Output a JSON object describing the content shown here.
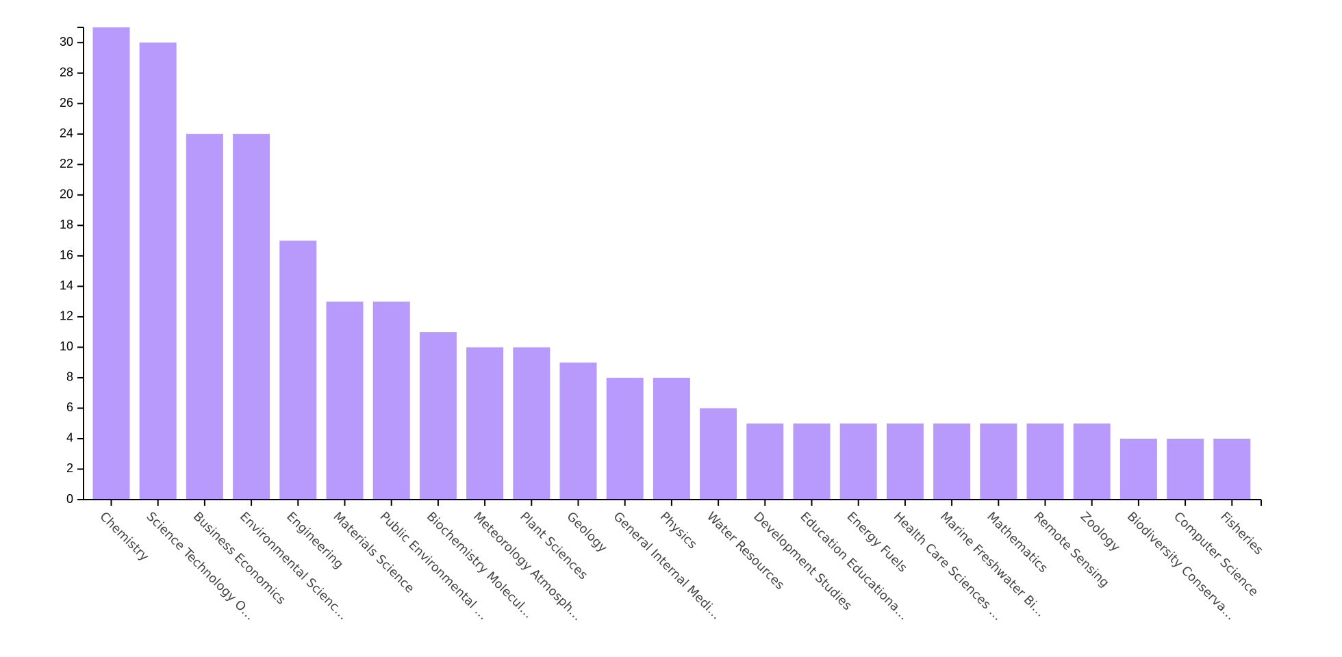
{
  "chart_data": {
    "type": "bar",
    "categories": [
      "Chemistry",
      "Science Technology O…",
      "Business Economics",
      "Environmental Scienc…",
      "Engineering",
      "Materials Science",
      "Public Environmental …",
      "Biochemistry Molecul…",
      "Meteorology Atmosph…",
      "Plant Sciences",
      "Geology",
      "General Internal Medi…",
      "Physics",
      "Water Resources",
      "Development Studies",
      "Education Educationa…",
      "Energy Fuels",
      "Health Care Sciences …",
      "Marine Freshwater Bi…",
      "Mathematics",
      "Remote Sensing",
      "Zoology",
      "Biodiversity Conserva…",
      "Computer Science",
      "Fisheries"
    ],
    "values": [
      31,
      30,
      24,
      24,
      17,
      13,
      13,
      11,
      10,
      10,
      9,
      8,
      8,
      6,
      5,
      5,
      5,
      5,
      5,
      5,
      5,
      5,
      4,
      4,
      4
    ],
    "y_ticks": [
      "0",
      "2",
      "4",
      "6",
      "8",
      "10",
      "12",
      "14",
      "16",
      "18",
      "20",
      "22",
      "24",
      "26",
      "28",
      "30"
    ],
    "ylim": [
      0,
      31
    ],
    "title": "",
    "xlabel": "",
    "ylabel": "",
    "grid": false,
    "bar_color": "#b899fc"
  }
}
